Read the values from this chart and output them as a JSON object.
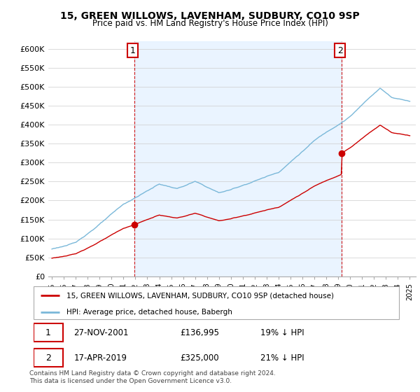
{
  "title": "15, GREEN WILLOWS, LAVENHAM, SUDBURY, CO10 9SP",
  "subtitle": "Price paid vs. HM Land Registry's House Price Index (HPI)",
  "legend_line1": "15, GREEN WILLOWS, LAVENHAM, SUDBURY, CO10 9SP (detached house)",
  "legend_line2": "HPI: Average price, detached house, Babergh",
  "footnote": "Contains HM Land Registry data © Crown copyright and database right 2024.\nThis data is licensed under the Open Government Licence v3.0.",
  "transaction1_date": "27-NOV-2001",
  "transaction1_price": "£136,995",
  "transaction1_hpi": "19% ↓ HPI",
  "transaction2_date": "17-APR-2019",
  "transaction2_price": "£325,000",
  "transaction2_hpi": "21% ↓ HPI",
  "hpi_color": "#7ab8d9",
  "price_color": "#cc0000",
  "vline_color": "#cc0000",
  "background_color": "#ffffff",
  "grid_color": "#cccccc",
  "fill_color": "#ddeeff",
  "ylim": [
    0,
    620000
  ],
  "yticks": [
    0,
    50000,
    100000,
    150000,
    200000,
    250000,
    300000,
    350000,
    400000,
    450000,
    500000,
    550000,
    600000
  ],
  "year_start": 1995,
  "year_end": 2025,
  "transaction1_x": 2001.92,
  "transaction2_x": 2019.29,
  "transaction1_price_val": 136995,
  "transaction2_price_val": 325000
}
